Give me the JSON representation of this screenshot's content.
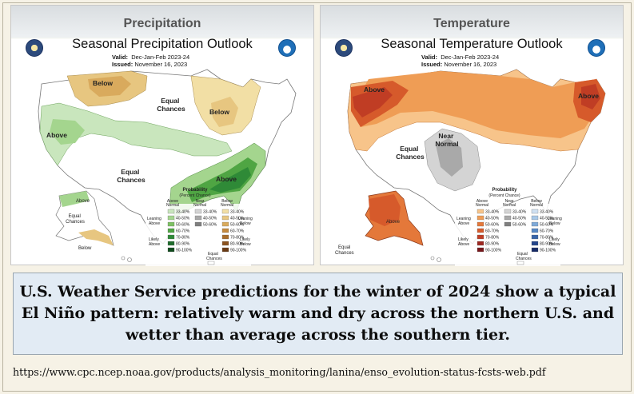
{
  "precip": {
    "header": "Precipitation",
    "title": "Seasonal Precipitation Outlook",
    "valid_label": "Valid:",
    "valid_value": "Dec-Jan-Feb 2023-24",
    "issued_label": "Issued:",
    "issued_value": "November 16, 2023",
    "regions": {
      "below_nw": "Below",
      "below_lakes": "Below",
      "equal_north_1": "Equal",
      "equal_north_2": "Chances",
      "above_west": "Above",
      "equal_tx_1": "Equal",
      "equal_tx_2": "Chances",
      "above_se": "Above",
      "ak_above": "Above",
      "ak_equal_1": "Equal",
      "ak_equal_2": "Chances",
      "ak_below": "Below"
    },
    "legend": {
      "title": "Probability",
      "subtitle": "(Percent Chance)",
      "col_above_1": "Above",
      "col_above_2": "Normal",
      "col_near_1": "Near",
      "col_near_2": "Normal",
      "col_below_1": "Below",
      "col_below_2": "Normal",
      "left_1": "Leaning",
      "left_2": "Above",
      "left_3": "Likely",
      "left_4": "Above",
      "right_1": "Leaning",
      "right_2": "Below",
      "right_3": "Likely",
      "right_4": "Below",
      "equal_1": "Equal",
      "equal_2": "Chances",
      "rows": [
        "33-40%",
        "40-50%",
        "50-60%",
        "60-70%",
        "70-80%",
        "80-90%",
        "90-100%"
      ]
    },
    "colors_above": [
      "#c9e6bd",
      "#a4d58e",
      "#7dc063",
      "#4fa543",
      "#2f8a37",
      "#1e6b2b",
      "#0f4a1c"
    ],
    "colors_below": [
      "#f2dfa5",
      "#e7c680",
      "#d9aa5d",
      "#c48a3f",
      "#a96d2b",
      "#8a521e",
      "#693914"
    ]
  },
  "temp": {
    "header": "Temperature",
    "title": "Seasonal Temperature Outlook",
    "valid_label": "Valid:",
    "valid_value": "Dec-Jan-Feb 2023-24",
    "issued_label": "Issued:",
    "issued_value": "November 16, 2023",
    "regions": {
      "above_nw": "Above",
      "above_ne": "Above",
      "equal_sw_1": "Equal",
      "equal_sw_2": "Chances",
      "near_1": "Near",
      "near_2": "Normal",
      "ak_above": "Above",
      "ak_equal_1": "Equal",
      "ak_equal_2": "Chances"
    },
    "legend": {
      "title": "Probability",
      "subtitle": "(Percent Chance)",
      "col_above_1": "Above",
      "col_above_2": "Normal",
      "col_near_1": "Near",
      "col_near_2": "Normal",
      "col_below_1": "Below",
      "col_below_2": "Normal",
      "left_1": "Leaning",
      "left_2": "Above",
      "left_3": "Likely",
      "left_4": "Above",
      "right_1": "Leaning",
      "right_2": "Below",
      "right_3": "Likely",
      "right_4": "Below",
      "equal_1": "Equal",
      "equal_2": "Chances",
      "rows": [
        "33-40%",
        "40-50%",
        "50-60%",
        "60-70%",
        "70-80%",
        "80-90%",
        "90-100%"
      ]
    },
    "colors_above": [
      "#f7c48a",
      "#ef9d55",
      "#e4783a",
      "#d65a2b",
      "#c03d24",
      "#9d2720",
      "#76161a"
    ],
    "colors_below": [
      "#cfe0f2",
      "#a8c8e8",
      "#7ea9d8",
      "#5688c4",
      "#3764a8",
      "#23448a",
      "#162a66"
    ],
    "near_colors": [
      "#d4d4d4",
      "#a9a9a9",
      "#7f7f7f"
    ]
  },
  "caption": "U.S. Weather Service predictions for the winter of 2024 show a typical El Niño pattern: relatively warm and dry across the northern U.S. and wetter than average across the southern tier.",
  "url": "https://www.cpc.ncep.noaa.gov/products/analysis_monitoring/lanina/enso_evolution-status-fcsts-web.pdf"
}
